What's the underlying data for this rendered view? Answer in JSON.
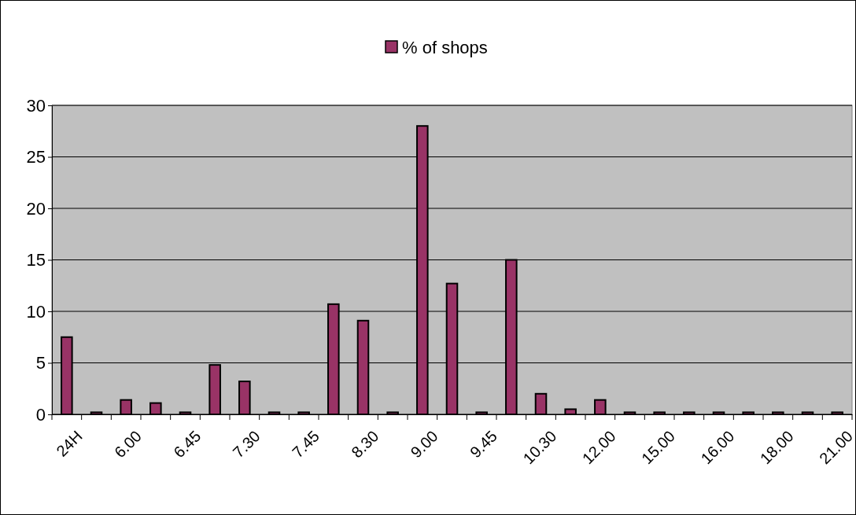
{
  "chart_data": {
    "type": "bar",
    "categories": [
      "24H",
      null,
      "6.00",
      null,
      "6.45",
      null,
      "7.30",
      null,
      "7.45",
      null,
      "8.30",
      null,
      "9.00",
      null,
      "9.45",
      null,
      "10.30",
      null,
      "12.00",
      null,
      "15.00",
      null,
      "16.00",
      null,
      "18.00",
      null,
      "21.00"
    ],
    "series": [
      {
        "name": "% of shops",
        "color": "#993366",
        "values": [
          7.5,
          0.2,
          1.4,
          1.1,
          0.2,
          4.8,
          3.2,
          0.2,
          0.2,
          10.7,
          9.1,
          0.2,
          28,
          12.7,
          0.2,
          15,
          2.0,
          0.5,
          1.4,
          0.2,
          0.2,
          0.2,
          0.2,
          0.2,
          0.2,
          0.2,
          0.2
        ]
      }
    ],
    "ylim": [
      0,
      30
    ],
    "yticks": [
      0,
      5,
      10,
      15,
      20,
      25,
      30
    ],
    "grid": "y",
    "legend": "top"
  }
}
